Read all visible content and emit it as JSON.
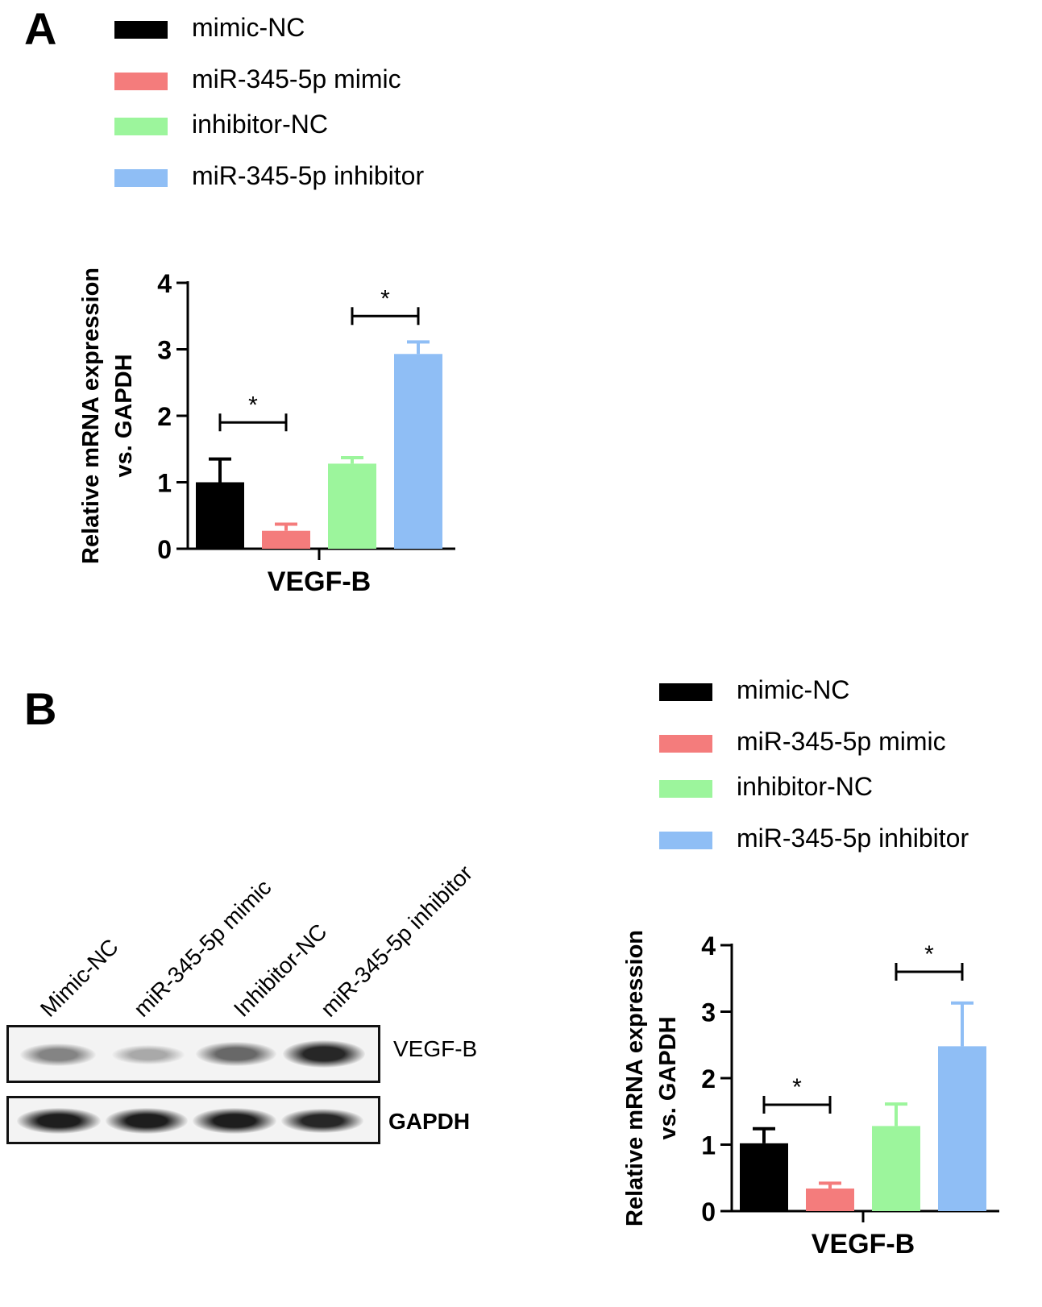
{
  "panels": {
    "a_letter": "A",
    "b_letter": "B"
  },
  "legend": {
    "items": [
      {
        "label": "mimic-NC",
        "color": "#000000"
      },
      {
        "label": "miR-345-5p mimic",
        "color": "#f47c7c"
      },
      {
        "label": "inhibitor-NC",
        "color": "#9cf59c"
      },
      {
        "label": "miR-345-5p inhibitor",
        "color": "#8fbef5"
      }
    ]
  },
  "blot": {
    "lanes": [
      "Mimic-NC",
      "miR-345-5p mimic",
      "Inhibitor-NC",
      "miR-345-5p inhibitor"
    ],
    "rows": [
      {
        "label": "VEGF-B",
        "intensities": [
          0.45,
          0.25,
          0.6,
          0.95
        ]
      },
      {
        "label": "GAPDH",
        "intensities": [
          1.0,
          1.0,
          1.0,
          0.95
        ]
      }
    ]
  },
  "chart_data": [
    {
      "type": "bar",
      "panel": "A",
      "categories": [
        "VEGF-B"
      ],
      "xlabel": "VEGF-B",
      "ylabel": "Relative mRNA expression vs. GAPDH",
      "ylabel_lines": [
        "Relative mRNA expression",
        "vs. GAPDH"
      ],
      "ylim": [
        0,
        4
      ],
      "yticks": [
        "0",
        "1",
        "2",
        "3",
        "4"
      ],
      "series": [
        {
          "name": "mimic-NC",
          "values": [
            1.0
          ],
          "error": [
            0.35
          ],
          "color": "#000000"
        },
        {
          "name": "miR-345-5p mimic",
          "values": [
            0.27
          ],
          "error": [
            0.1
          ],
          "color": "#f47c7c"
        },
        {
          "name": "inhibitor-NC",
          "values": [
            1.28
          ],
          "error": [
            0.09
          ],
          "color": "#9cf59c"
        },
        {
          "name": "miR-345-5p inhibitor",
          "values": [
            2.93
          ],
          "error": [
            0.18
          ],
          "color": "#8fbef5"
        }
      ],
      "significance": [
        {
          "between": [
            0,
            1
          ],
          "label": "*",
          "level": 1.9
        },
        {
          "between": [
            2,
            3
          ],
          "label": "*",
          "level": 3.5
        }
      ]
    },
    {
      "type": "bar",
      "panel": "B",
      "categories": [
        "VEGF-B"
      ],
      "xlabel": "VEGF-B",
      "ylabel": "Relative mRNA expression vs. GAPDH",
      "ylabel_lines": [
        "Relative mRNA expression",
        "vs. GAPDH"
      ],
      "ylim": [
        0,
        4
      ],
      "yticks": [
        "0",
        "1",
        "2",
        "3",
        "4"
      ],
      "series": [
        {
          "name": "mimic-NC",
          "values": [
            1.02
          ],
          "error": [
            0.22
          ],
          "color": "#000000"
        },
        {
          "name": "miR-345-5p mimic",
          "values": [
            0.34
          ],
          "error": [
            0.08
          ],
          "color": "#f47c7c"
        },
        {
          "name": "inhibitor-NC",
          "values": [
            1.28
          ],
          "error": [
            0.33
          ],
          "color": "#9cf59c"
        },
        {
          "name": "miR-345-5p inhibitor",
          "values": [
            2.48
          ],
          "error": [
            0.65
          ],
          "color": "#8fbef5"
        }
      ],
      "significance": [
        {
          "between": [
            0,
            1
          ],
          "label": "*",
          "level": 1.6
        },
        {
          "between": [
            2,
            3
          ],
          "label": "*",
          "level": 3.6
        }
      ]
    }
  ]
}
